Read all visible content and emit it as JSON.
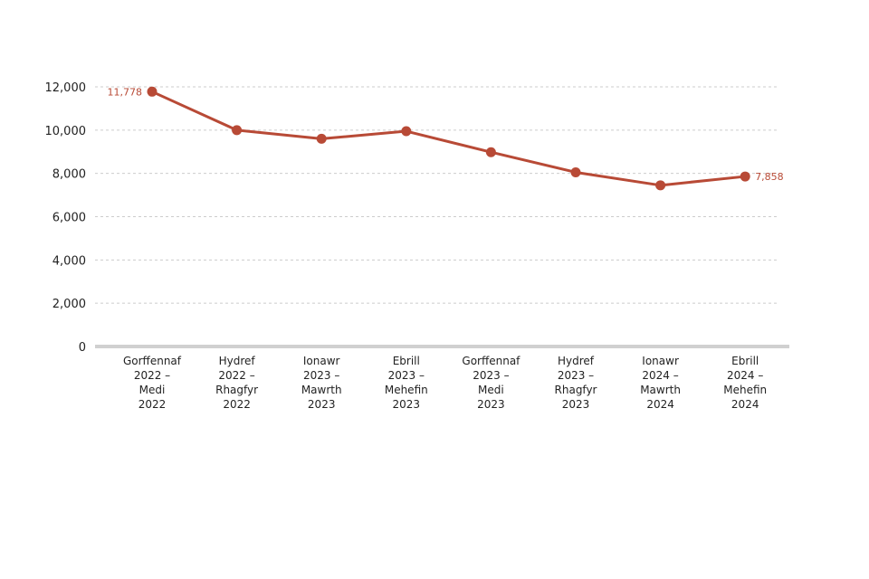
{
  "chart_data": {
    "type": "line",
    "title": "",
    "xlabel": "",
    "ylabel": "",
    "categories": [
      [
        "Gorffennaf",
        "2022 –",
        "Medi",
        "2022"
      ],
      [
        "Hydref",
        "2022 –",
        "Rhagfyr",
        "2022"
      ],
      [
        "Ionawr",
        "2023 –",
        "Mawrth",
        "2023"
      ],
      [
        "Ebrill",
        "2023 –",
        "Mehefin",
        "2023"
      ],
      [
        "Gorffennaf",
        "2023 –",
        "Medi",
        "2023"
      ],
      [
        "Hydref",
        "2023 –",
        "Rhagfyr",
        "2023"
      ],
      [
        "Ionawr",
        "2024 –",
        "Mawrth",
        "2024"
      ],
      [
        "Ebrill",
        "2024 –",
        "Mehefin",
        "2024"
      ]
    ],
    "series": [
      {
        "values": [
          11778,
          10000,
          9600,
          9950,
          8980,
          8050,
          7450,
          7858
        ],
        "color": "#b84a36"
      }
    ],
    "data_labels": [
      {
        "index": 0,
        "text": "11,778",
        "side": "left"
      },
      {
        "index": 7,
        "text": "7,858",
        "side": "right"
      }
    ],
    "ylim": [
      0,
      12000
    ],
    "yticks": [
      0,
      2000,
      4000,
      6000,
      8000,
      10000,
      12000
    ],
    "ytick_labels": [
      "0",
      "2,000",
      "4,000",
      "6,000",
      "8,000",
      "10,000",
      "12,000"
    ],
    "grid": true,
    "legend": "none",
    "colors": {
      "line": "#b84a36",
      "grid": "#cccccc",
      "axis": "#d0d0d0",
      "text": "#222222"
    }
  }
}
